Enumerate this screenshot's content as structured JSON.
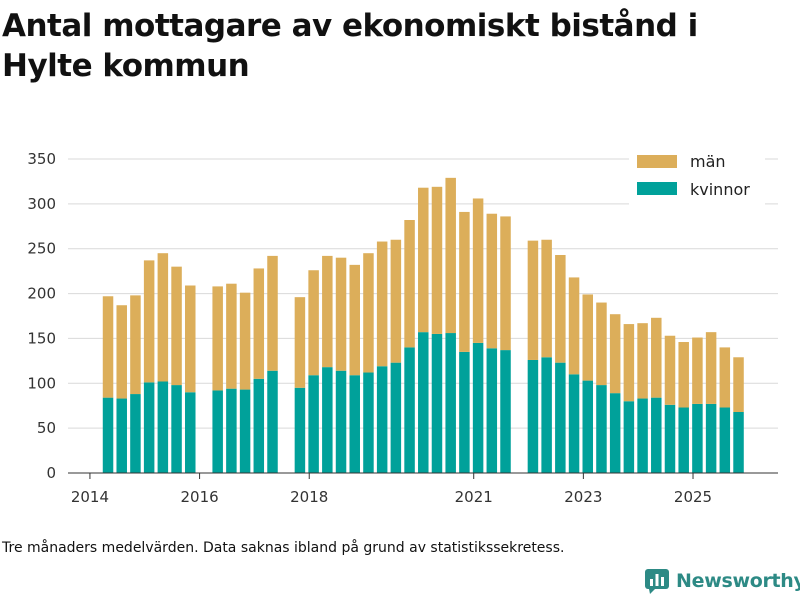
{
  "title": "Antal mottagare av ekonomiskt bistånd i Hylte kommun",
  "note": "Tre månaders medelvärden. Data saknas ibland på grund av statistikssekretess.",
  "brand": "Newsworthy",
  "colors": {
    "men": "#dcae5a",
    "women": "#00a19a",
    "grid": "#d9d9d9",
    "axis": "#333333",
    "brand": "#2d8a85"
  },
  "chart_data": {
    "type": "bar",
    "stacked": true,
    "title": "Antal mottagare av ekonomiskt bistånd i Hylte kommun",
    "xlabel": "",
    "ylabel": "",
    "ylim": [
      0,
      350
    ],
    "yticks": [
      0,
      50,
      100,
      150,
      200,
      250,
      300,
      350
    ],
    "xlim": [
      2013.6,
      2026.55
    ],
    "xticks": [
      {
        "value": 2014.0,
        "label": "2014"
      },
      {
        "value": 2016.0,
        "label": "2016"
      },
      {
        "value": 2018.0,
        "label": "2018"
      },
      {
        "value": 2021.0,
        "label": "2021"
      },
      {
        "value": 2023.0,
        "label": "2023"
      },
      {
        "value": 2025.0,
        "label": "2025"
      }
    ],
    "grid": true,
    "legend_position": "top-right",
    "series": [
      {
        "name": "män",
        "key": "men"
      },
      {
        "name": "kvinnor",
        "key": "women"
      }
    ],
    "x": [
      2014.33,
      2014.58,
      2014.83,
      2015.08,
      2015.33,
      2015.58,
      2015.83,
      2016.33,
      2016.58,
      2016.83,
      2017.08,
      2017.33,
      2017.83,
      2018.08,
      2018.33,
      2018.58,
      2018.83,
      2019.08,
      2019.33,
      2019.58,
      2019.83,
      2020.08,
      2020.33,
      2020.58,
      2020.83,
      2021.08,
      2021.33,
      2021.58,
      2022.08,
      2022.33,
      2022.58,
      2022.83,
      2023.08,
      2023.33,
      2023.58,
      2023.83,
      2024.08,
      2024.33,
      2024.58,
      2024.83,
      2025.08,
      2025.33,
      2025.58,
      2025.83
    ],
    "women": [
      84,
      83,
      88,
      101,
      102,
      98,
      90,
      92,
      94,
      93,
      105,
      114,
      95,
      109,
      118,
      114,
      109,
      112,
      119,
      123,
      140,
      157,
      155,
      156,
      135,
      145,
      139,
      137,
      126,
      129,
      123,
      110,
      103,
      98,
      89,
      80,
      83,
      84,
      76,
      73,
      77,
      77,
      73,
      68
    ],
    "men": [
      113,
      104,
      110,
      136,
      143,
      132,
      119,
      116,
      117,
      108,
      123,
      128,
      101,
      117,
      124,
      126,
      123,
      133,
      139,
      137,
      142,
      161,
      164,
      173,
      156,
      161,
      150,
      149,
      133,
      131,
      120,
      108,
      96,
      92,
      88,
      86,
      84,
      89,
      77,
      73,
      74,
      80,
      67,
      61
    ],
    "totals": [
      197,
      187,
      198,
      237,
      245,
      230,
      209,
      208,
      211,
      201,
      228,
      242,
      196,
      226,
      242,
      240,
      232,
      245,
      258,
      260,
      282,
      318,
      319,
      329,
      291,
      306,
      289,
      286,
      259,
      260,
      243,
      218,
      199,
      190,
      177,
      166,
      167,
      173,
      153,
      146,
      151,
      157,
      140,
      129
    ]
  }
}
